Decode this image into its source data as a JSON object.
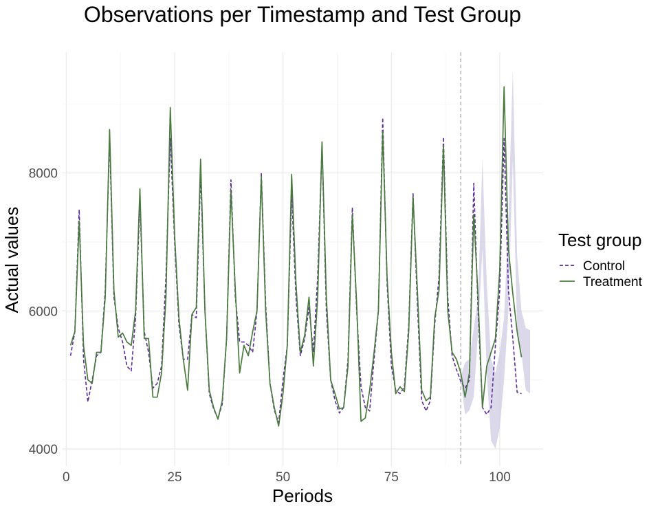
{
  "chart_data": {
    "type": "line",
    "title": "Observations per Timestamp and Test Group",
    "xlabel": "Periods",
    "ylabel": "Actual values",
    "xlim": [
      -1,
      110
    ],
    "ylim": [
      3750,
      9750
    ],
    "xticks": [
      0,
      25,
      50,
      75,
      100
    ],
    "yticks": [
      4000,
      6000,
      8000
    ],
    "grid": true,
    "intervention_x": 91,
    "legend": {
      "title": "Test group",
      "position": "right"
    },
    "band": {
      "start_x": 91,
      "lower": [
        5000,
        4500,
        4560,
        4750,
        5700,
        6900,
        5100,
        4120,
        4000,
        4300,
        5000,
        6000,
        8200,
        5700,
        5380,
        4850,
        4800
      ],
      "upper": [
        5050,
        5250,
        5300,
        5750,
        6200,
        8200,
        6400,
        5300,
        5100,
        5400,
        5900,
        7300,
        9500,
        6800,
        6000,
        5750,
        5720
      ]
    },
    "series": [
      {
        "name": "Control",
        "color": "#5b2a9c",
        "dash": true,
        "values": [
          5350,
          5700,
          7470,
          5300,
          4680,
          5000,
          5350,
          5400,
          6300,
          8500,
          6200,
          5750,
          5550,
          5200,
          5130,
          5900,
          7600,
          5700,
          5400,
          4880,
          4950,
          5200,
          6500,
          8500,
          7000,
          5800,
          5300,
          5300,
          5950,
          5900,
          8000,
          6000,
          4800,
          4580,
          4440,
          4650,
          5600,
          7900,
          6200,
          5550,
          5550,
          5500,
          5400,
          6000,
          8000,
          6100,
          4950,
          4560,
          4380,
          5000,
          5500,
          7700,
          6200,
          5350,
          5600,
          6050,
          5400,
          6500,
          8400,
          6000,
          5000,
          4700,
          4520,
          4600,
          5300,
          7500,
          6000,
          4900,
          4600,
          4550,
          5300,
          6000,
          8800,
          6400,
          5200,
          4850,
          4800,
          4900,
          5800,
          7700,
          6100,
          4700,
          4550,
          4700,
          5800,
          6500,
          8520,
          6200,
          5350,
          5150,
          4980,
          4880,
          5000,
          7850,
          6000,
          4600,
          4500,
          4600,
          5500,
          6300,
          8500,
          6300,
          5600,
          4820,
          4800
        ]
      },
      {
        "name": "Treatment",
        "color": "#4a7a3e",
        "dash": false,
        "values": [
          5500,
          5700,
          7300,
          5500,
          5000,
          4950,
          5400,
          5400,
          6200,
          8630,
          6300,
          5620,
          5680,
          5550,
          5500,
          6000,
          7770,
          5600,
          5600,
          4750,
          4750,
          5100,
          6200,
          8950,
          7100,
          5900,
          5300,
          4850,
          5950,
          6050,
          8200,
          6000,
          4850,
          4600,
          4430,
          4700,
          5600,
          7750,
          6300,
          5100,
          5500,
          5350,
          5700,
          6000,
          7950,
          6000,
          4950,
          4600,
          4330,
          4800,
          5500,
          7980,
          6400,
          5400,
          5650,
          6200,
          5200,
          6200,
          8450,
          6200,
          5000,
          4800,
          4580,
          4600,
          5200,
          7400,
          6100,
          4400,
          4450,
          4850,
          5400,
          6000,
          8600,
          6500,
          5400,
          4800,
          4900,
          4830,
          5700,
          7650,
          6300,
          4850,
          4700,
          4750,
          5900,
          6300,
          8400,
          6000,
          5400,
          5300,
          5100,
          4750,
          5100,
          7400,
          6200,
          4600,
          5200,
          5400,
          5600,
          6600,
          9250,
          6900,
          6250,
          5700,
          5330
        ]
      }
    ]
  }
}
